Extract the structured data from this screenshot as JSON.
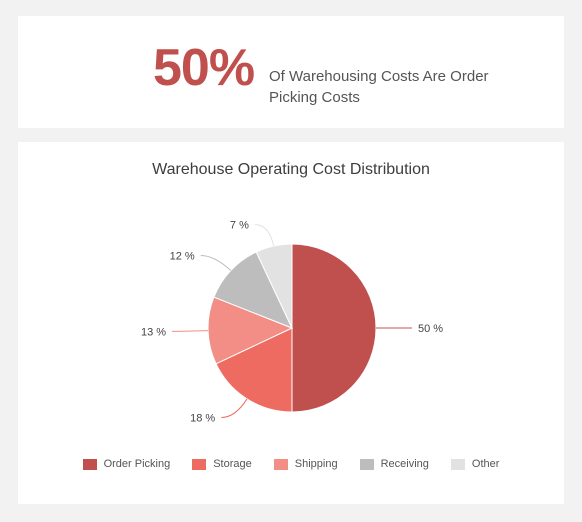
{
  "kpi": {
    "value": "50%",
    "description": "Of Warehousing Costs Are Order Picking Costs"
  },
  "chart_data": {
    "type": "pie",
    "title": "Warehouse Operating Cost Distribution",
    "legend_position": "bottom",
    "slices": [
      {
        "name": "Order Picking",
        "value": 50,
        "label": "50 %",
        "color": "#c0504d"
      },
      {
        "name": "Storage",
        "value": 18,
        "label": "18 %",
        "color": "#ee6b61"
      },
      {
        "name": "Shipping",
        "value": 13,
        "label": "13 %",
        "color": "#f28e86"
      },
      {
        "name": "Receiving",
        "value": 12,
        "label": "12 %",
        "color": "#bdbdbd"
      },
      {
        "name": "Other",
        "value": 7,
        "label": "7 %",
        "color": "#e2e2e2"
      }
    ]
  }
}
